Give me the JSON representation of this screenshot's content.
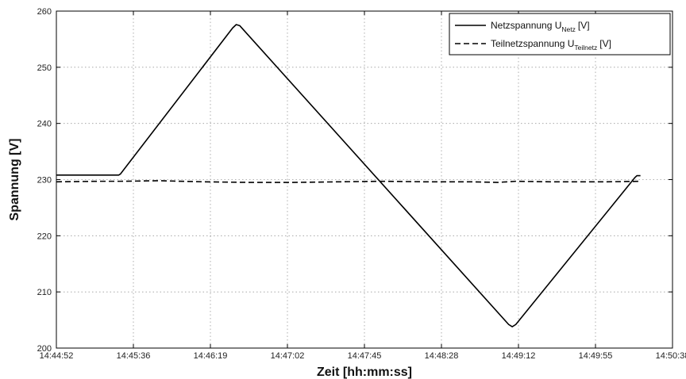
{
  "chart_data": {
    "type": "line",
    "xlabel": "Zeit [hh:mm:ss]",
    "ylabel": "Spannung [V]",
    "x_range_seconds": [
      "14:44:52",
      "14:50:38"
    ],
    "ylim": [
      200,
      260
    ],
    "x_ticks": [
      "14:44:52",
      "14:45:36",
      "14:46:19",
      "14:47:02",
      "14:47:45",
      "14:48:28",
      "14:49:12",
      "14:49:55",
      "14:50:38"
    ],
    "y_ticks": [
      "200",
      "210",
      "220",
      "230",
      "240",
      "250",
      "260"
    ],
    "grid": true,
    "legend_position": "top-right",
    "series": [
      {
        "name": "Netzspannung U_Netz [V]",
        "legend_main": "Netzspannung U",
        "legend_sub": "Netz",
        "legend_suffix": "[V]",
        "style": "solid",
        "x": [
          "14:44:52",
          "14:45:27",
          "14:45:28",
          "14:46:31",
          "14:46:33",
          "14:46:35",
          "14:49:06",
          "14:49:08",
          "14:49:10",
          "14:50:17",
          "14:50:18",
          "14:50:20"
        ],
        "y": [
          230.8,
          230.8,
          231.0,
          257.0,
          257.6,
          257.4,
          204.2,
          203.8,
          204.2,
          230.4,
          230.7,
          230.7
        ]
      },
      {
        "name": "Teilnetzspannung U_Teilnetz [V]",
        "legend_main": "Teilnetzspannung U",
        "legend_sub": "Teilnetz",
        "legend_suffix": "[V]",
        "style": "dashed",
        "x": [
          "14:44:52",
          "14:45:15",
          "14:45:28",
          "14:45:50",
          "14:46:15",
          "14:46:40",
          "14:47:05",
          "14:47:30",
          "14:47:55",
          "14:48:20",
          "14:48:45",
          "14:49:00",
          "14:49:10",
          "14:49:30",
          "14:50:00",
          "14:50:20"
        ],
        "y": [
          229.6,
          229.7,
          229.7,
          229.8,
          229.6,
          229.5,
          229.5,
          229.6,
          229.7,
          229.6,
          229.6,
          229.5,
          229.7,
          229.6,
          229.6,
          229.7
        ]
      }
    ]
  }
}
